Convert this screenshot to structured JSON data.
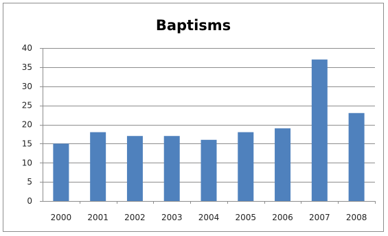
{
  "chart_data": {
    "type": "bar",
    "title": "Baptisms",
    "xlabel": "",
    "ylabel": "",
    "categories": [
      "2000",
      "2001",
      "2002",
      "2003",
      "2004",
      "2005",
      "2006",
      "2007",
      "2008"
    ],
    "values": [
      15,
      18,
      17,
      17,
      16,
      18,
      19,
      37,
      23
    ],
    "ylim": [
      0,
      40
    ],
    "yticks": [
      0,
      5,
      10,
      15,
      20,
      25,
      30,
      35,
      40
    ],
    "grid": true,
    "legend": "none",
    "colors": {
      "bar": "#4f81bd",
      "grid": "#8c8c8c",
      "axis": "#8c8c8c"
    }
  }
}
